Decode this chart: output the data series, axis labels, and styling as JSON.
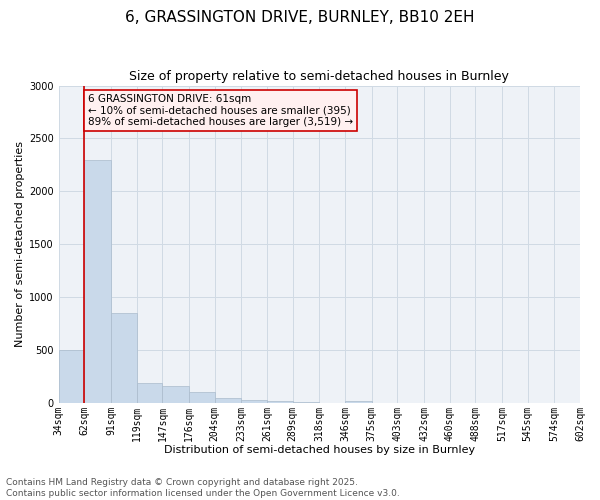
{
  "title": "6, GRASSINGTON DRIVE, BURNLEY, BB10 2EH",
  "subtitle": "Size of property relative to semi-detached houses in Burnley",
  "xlabel": "Distribution of semi-detached houses by size in Burnley",
  "ylabel": "Number of semi-detached properties",
  "bins": [
    34,
    62,
    91,
    119,
    147,
    176,
    204,
    233,
    261,
    289,
    318,
    346,
    375,
    403,
    432,
    460,
    488,
    517,
    545,
    574,
    602
  ],
  "values": [
    500,
    2300,
    850,
    185,
    155,
    100,
    50,
    30,
    20,
    5,
    0,
    20,
    0,
    0,
    0,
    0,
    0,
    0,
    0,
    0
  ],
  "bar_color": "#c9d9ea",
  "bar_edge_color": "#aabbcc",
  "grid_color": "#d0dae4",
  "bg_color": "#eef2f7",
  "vline_x": 62,
  "vline_color": "#cc0000",
  "annotation_text": "6 GRASSINGTON DRIVE: 61sqm\n← 10% of semi-detached houses are smaller (395)\n89% of semi-detached houses are larger (3,519) →",
  "annotation_box_facecolor": "#fff0f0",
  "annotation_box_edge": "#cc0000",
  "ylim": [
    0,
    3000
  ],
  "yticks": [
    0,
    500,
    1000,
    1500,
    2000,
    2500,
    3000
  ],
  "footer_line1": "Contains HM Land Registry data © Crown copyright and database right 2025.",
  "footer_line2": "Contains public sector information licensed under the Open Government Licence v3.0.",
  "title_fontsize": 11,
  "subtitle_fontsize": 9,
  "axis_label_fontsize": 8,
  "tick_fontsize": 7,
  "annotation_fontsize": 7.5,
  "footer_fontsize": 6.5
}
